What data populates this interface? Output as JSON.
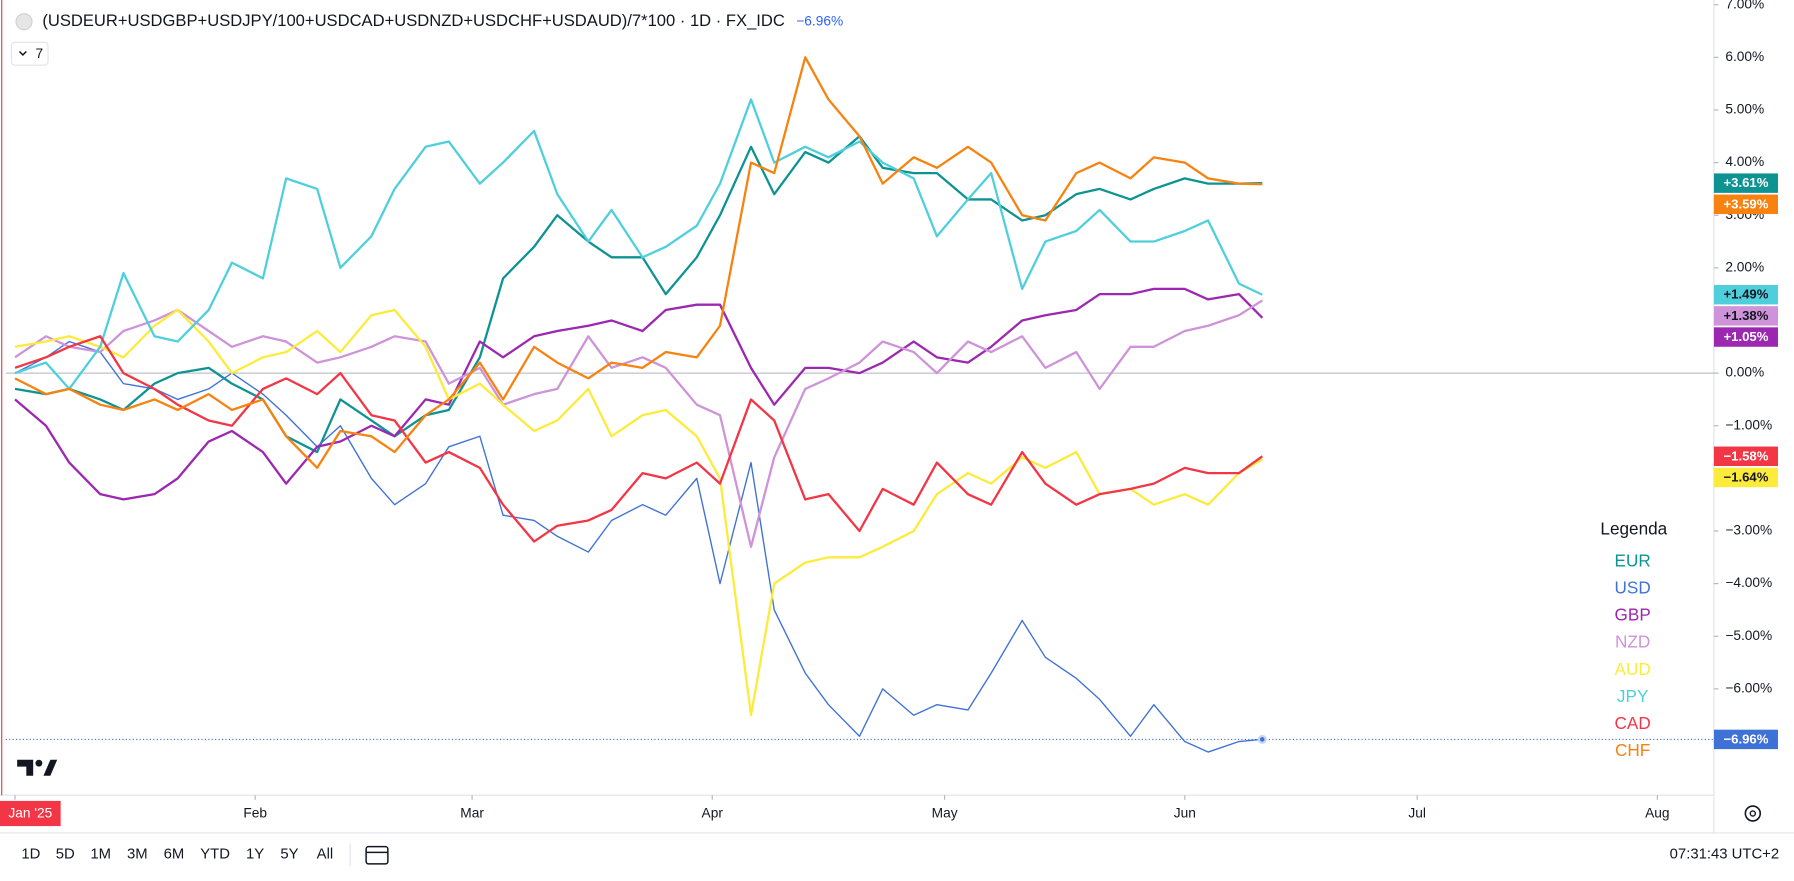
{
  "chart_data": {
    "type": "line",
    "title": "(USDEUR+USDGBP+USDJPY/100+USDCAD+USDNZD+USDCHF+USDAUD)/7*100 · 1D · FX_IDC",
    "change_label": "−6.96%",
    "collapsed_count": 7,
    "legend_title": "Legenda",
    "legend_position": "right",
    "x": [
      0,
      4,
      7,
      11,
      14,
      18,
      21,
      25,
      28,
      32,
      35,
      39,
      42,
      46,
      49,
      53,
      56,
      60,
      63,
      67,
      70,
      74,
      77,
      81,
      84,
      88,
      91,
      95,
      98,
      102,
      105,
      109,
      112,
      116,
      119,
      123,
      126,
      130,
      133,
      137,
      140,
      144,
      147,
      151,
      154,
      158,
      161
    ],
    "xlim": [
      -1.2,
      219.3
    ],
    "xticks": [
      {
        "value": 0,
        "label": "Jan '25"
      },
      {
        "value": 31,
        "label": "Feb"
      },
      {
        "value": 59,
        "label": "Mar"
      },
      {
        "value": 90,
        "label": "Apr"
      },
      {
        "value": 120,
        "label": "May"
      },
      {
        "value": 151,
        "label": "Jun"
      },
      {
        "value": 181,
        "label": "Jul"
      },
      {
        "value": 212,
        "label": "Aug"
      }
    ],
    "ylim": [
      -8.02,
      7.09
    ],
    "yticks": [
      {
        "value": 7,
        "label": "7.00%"
      },
      {
        "value": 6,
        "label": "6.00%"
      },
      {
        "value": 5,
        "label": "5.00%"
      },
      {
        "value": 4,
        "label": "4.00%"
      },
      {
        "value": 3,
        "label": "3.00%"
      },
      {
        "value": 2,
        "label": "2.00%"
      },
      {
        "value": 1,
        "label": "1.00%"
      },
      {
        "value": 0,
        "label": "0.00%"
      },
      {
        "value": -1,
        "label": "−1.00%"
      },
      {
        "value": -2,
        "label": "−2.00%"
      },
      {
        "value": -3,
        "label": "−3.00%"
      },
      {
        "value": -4,
        "label": "−4.00%"
      },
      {
        "value": -5,
        "label": "−5.00%"
      },
      {
        "value": -6,
        "label": "−6.00%"
      }
    ],
    "series": [
      {
        "name": "EUR",
        "color": "#0e9393",
        "last_label": "+3.61%",
        "values": [
          -0.3,
          -0.4,
          -0.3,
          -0.5,
          -0.7,
          -0.2,
          0.0,
          0.1,
          -0.2,
          -0.5,
          -1.2,
          -1.5,
          -0.5,
          -0.9,
          -1.2,
          -0.8,
          -0.7,
          0.3,
          1.8,
          2.4,
          3.0,
          2.5,
          2.2,
          2.2,
          1.5,
          2.2,
          3.0,
          4.3,
          3.4,
          4.2,
          4.0,
          4.5,
          3.9,
          3.8,
          3.8,
          3.3,
          3.3,
          2.9,
          3.0,
          3.4,
          3.5,
          3.3,
          3.5,
          3.7,
          3.6,
          3.6,
          3.61
        ]
      },
      {
        "name": "USD",
        "color": "#3f72d6",
        "last_label": "−6.96%",
        "price_line": true,
        "values": [
          0,
          0.3,
          0.6,
          0.4,
          -0.2,
          -0.3,
          -0.5,
          -0.3,
          0.0,
          -0.4,
          -0.8,
          -1.4,
          -1.0,
          -2.0,
          -2.5,
          -2.1,
          -1.4,
          -1.2,
          -2.7,
          -2.8,
          -3.1,
          -3.4,
          -2.8,
          -2.5,
          -2.7,
          -2.0,
          -4.0,
          -1.7,
          -4.5,
          -5.7,
          -6.3,
          -6.9,
          -6.0,
          -6.5,
          -6.3,
          -6.4,
          -5.7,
          -4.7,
          -5.4,
          -5.8,
          -6.2,
          -6.9,
          -6.3,
          -7.0,
          -7.2,
          -7.0,
          -6.96
        ]
      },
      {
        "name": "GBP",
        "color": "#9c27b0",
        "last_label": "+1.05%",
        "values": [
          -0.5,
          -1.0,
          -1.7,
          -2.3,
          -2.4,
          -2.3,
          -2.0,
          -1.3,
          -1.1,
          -1.5,
          -2.1,
          -1.4,
          -1.3,
          -1.0,
          -1.2,
          -0.5,
          -0.6,
          0.6,
          0.3,
          0.7,
          0.8,
          0.9,
          1.0,
          0.8,
          1.2,
          1.3,
          1.3,
          0.1,
          -0.6,
          0.1,
          0.1,
          0.0,
          0.2,
          0.6,
          0.3,
          0.2,
          0.5,
          1.0,
          1.1,
          1.2,
          1.5,
          1.5,
          1.6,
          1.6,
          1.4,
          1.5,
          1.05
        ]
      },
      {
        "name": "NZD",
        "color": "#ce93d8",
        "last_label": "+1.38%",
        "values": [
          0.3,
          0.7,
          0.5,
          0.4,
          0.8,
          1.0,
          1.2,
          0.8,
          0.5,
          0.7,
          0.6,
          0.2,
          0.3,
          0.5,
          0.7,
          0.6,
          -0.2,
          0.1,
          -0.6,
          -0.4,
          -0.3,
          0.7,
          0.1,
          0.3,
          0.1,
          -0.6,
          -0.8,
          -3.3,
          -1.6,
          -0.3,
          -0.1,
          0.2,
          0.6,
          0.4,
          0.0,
          0.6,
          0.4,
          0.7,
          0.1,
          0.4,
          -0.3,
          0.5,
          0.5,
          0.8,
          0.9,
          1.1,
          1.38
        ]
      },
      {
        "name": "AUD",
        "color": "#fdeb3b",
        "last_label": "−1.64%",
        "values": [
          0.5,
          0.6,
          0.7,
          0.5,
          0.3,
          0.9,
          1.2,
          0.6,
          0.0,
          0.3,
          0.4,
          0.8,
          0.4,
          1.1,
          1.2,
          0.5,
          -0.5,
          -0.2,
          -0.6,
          -1.1,
          -0.9,
          -0.3,
          -1.2,
          -0.8,
          -0.7,
          -1.2,
          -2.0,
          -6.5,
          -4.0,
          -3.6,
          -3.5,
          -3.5,
          -3.3,
          -3.0,
          -2.3,
          -1.9,
          -2.1,
          -1.6,
          -1.8,
          -1.5,
          -2.3,
          -2.2,
          -2.5,
          -2.3,
          -2.5,
          -1.9,
          -1.64
        ]
      },
      {
        "name": "JPY",
        "color": "#4fcfdc",
        "last_label": "+1.49%",
        "values": [
          0,
          0.2,
          -0.3,
          0.5,
          1.9,
          0.7,
          0.6,
          1.2,
          2.1,
          1.8,
          3.7,
          3.5,
          2.0,
          2.6,
          3.5,
          4.3,
          4.4,
          3.6,
          4.0,
          4.6,
          3.4,
          2.5,
          3.1,
          2.2,
          2.4,
          2.8,
          3.6,
          5.2,
          4.0,
          4.3,
          4.1,
          4.4,
          4.0,
          3.7,
          2.6,
          3.3,
          3.8,
          1.6,
          2.5,
          2.7,
          3.1,
          2.5,
          2.5,
          2.7,
          2.9,
          1.7,
          1.49
        ]
      },
      {
        "name": "CAD",
        "color": "#f23645",
        "last_label": "−1.58%",
        "values": [
          0.1,
          0.3,
          0.5,
          0.7,
          0.0,
          -0.3,
          -0.6,
          -0.9,
          -1.0,
          -0.3,
          -0.1,
          -0.4,
          0.0,
          -0.8,
          -0.9,
          -1.7,
          -1.5,
          -1.8,
          -2.5,
          -3.2,
          -2.9,
          -2.8,
          -2.6,
          -1.9,
          -2.0,
          -1.7,
          -2.1,
          -0.5,
          -0.9,
          -2.4,
          -2.3,
          -3.0,
          -2.2,
          -2.5,
          -1.7,
          -2.3,
          -2.5,
          -1.5,
          -2.1,
          -2.5,
          -2.3,
          -2.2,
          -2.1,
          -1.8,
          -1.9,
          -1.9,
          -1.58
        ]
      },
      {
        "name": "CHF",
        "color": "#f7820f",
        "last_label": "+3.59%",
        "values": [
          -0.1,
          -0.4,
          -0.3,
          -0.6,
          -0.7,
          -0.5,
          -0.7,
          -0.4,
          -0.7,
          -0.5,
          -1.2,
          -1.8,
          -1.1,
          -1.2,
          -1.5,
          -0.8,
          -0.5,
          0.2,
          -0.5,
          0.5,
          0.2,
          -0.1,
          0.2,
          0.1,
          0.4,
          0.3,
          0.9,
          4.0,
          3.8,
          6.0,
          5.2,
          4.5,
          3.6,
          4.1,
          3.9,
          4.3,
          4.0,
          3.0,
          2.9,
          3.8,
          4.0,
          3.7,
          4.1,
          4.0,
          3.7,
          3.6,
          3.59
        ]
      }
    ]
  },
  "toolbar": {
    "ranges": [
      "1D",
      "5D",
      "1M",
      "3M",
      "6M",
      "YTD",
      "1Y",
      "5Y",
      "All"
    ],
    "clock": "07:31:43 UTC+2"
  }
}
